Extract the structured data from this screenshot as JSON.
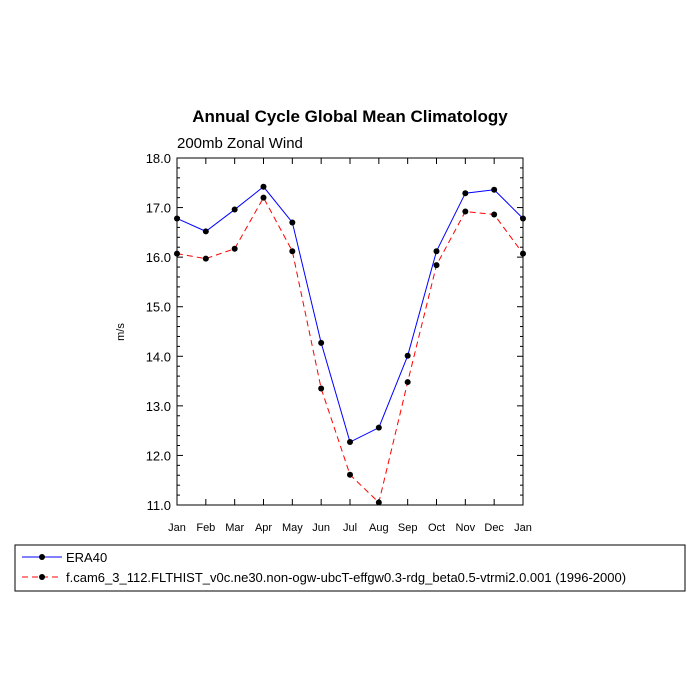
{
  "colors": {
    "era40": "#0000ff",
    "model": "#ff0000",
    "marker": "#000000"
  },
  "chart_data": {
    "type": "line",
    "title": "Annual Cycle Global Mean Climatology",
    "subtitle": "200mb Zonal Wind",
    "xlabel": "",
    "ylabel": "m/s",
    "categories": [
      "Jan",
      "Feb",
      "Mar",
      "Apr",
      "May",
      "Jun",
      "Jul",
      "Aug",
      "Sep",
      "Oct",
      "Nov",
      "Dec",
      "Jan"
    ],
    "ylim": [
      11.0,
      18.0
    ],
    "yticks": [
      "11.0",
      "12.0",
      "13.0",
      "14.0",
      "15.0",
      "16.0",
      "17.0",
      "18.0"
    ],
    "legend_placement": "bottom",
    "series": [
      {
        "name": "ERA40",
        "line_style": "solid",
        "values": [
          16.78,
          16.52,
          16.96,
          17.42,
          16.7,
          14.27,
          12.27,
          12.56,
          14.01,
          16.12,
          17.29,
          17.36,
          16.78
        ]
      },
      {
        "name": "f.cam6_3_112.FLTHIST_v0c.ne30.non-ogw-ubcT-effgw0.3-rdg_beta0.5-vtrmi2.0.001 (1996-2000)",
        "line_style": "dashed",
        "values": [
          16.07,
          15.97,
          16.17,
          17.2,
          16.12,
          13.35,
          11.61,
          11.05,
          13.48,
          15.84,
          16.92,
          16.86,
          16.07
        ]
      }
    ]
  }
}
